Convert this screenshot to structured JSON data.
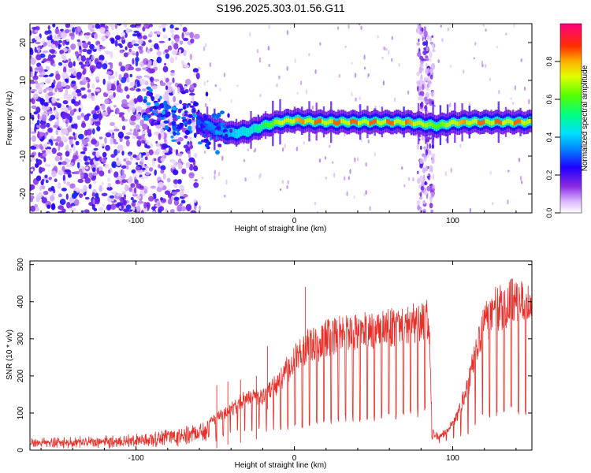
{
  "title": "S196.2025.303.01.56.G11",
  "colors": {
    "snr_line": "#e8302a",
    "axis": "#000000",
    "background": "#ffffff"
  },
  "chart_data": [
    {
      "type": "heatmap",
      "name": "spectrogram",
      "xlabel": "Height of straight line (km)",
      "ylabel": "Frequency (Hz)",
      "xlim": [
        -167,
        150
      ],
      "ylim": [
        -25,
        25
      ],
      "x_ticks": [
        -100,
        0,
        100
      ],
      "y_ticks": [
        -20,
        -10,
        0,
        10,
        20
      ],
      "colorbar": {
        "label": "Normalized spectral amplitude",
        "range": [
          0,
          1
        ],
        "ticks": [
          0.0,
          0.2,
          0.4,
          0.6,
          0.8
        ],
        "tick_labels": [
          "0.0",
          "0.2",
          "0.4",
          "0.6",
          "0.8"
        ],
        "colormap": "rainbow (white-purple-blue-cyan-green-yellow-orange-red-magenta)"
      },
      "description_points": {
        "noise_region_x": [
          -167,
          -60
        ],
        "noise_freq_range": [
          -25,
          25
        ],
        "interference_band_x": [
          78,
          88
        ],
        "signal_track": {
          "x": [
            -60,
            -50,
            -40,
            -30,
            -20,
            -10,
            0,
            10,
            20,
            30,
            40,
            50,
            60,
            70,
            80,
            90,
            100,
            110,
            120,
            130,
            140,
            150
          ],
          "freq": [
            -1.5,
            -3,
            -4,
            -3.5,
            -2,
            -1,
            -0.5,
            -0.8,
            -1,
            -1,
            -1,
            -1,
            -1,
            -1,
            -1.5,
            -2,
            -1.2,
            -1,
            -1,
            -1,
            -1,
            -1
          ],
          "amplitude": [
            0.3,
            0.35,
            0.4,
            0.45,
            0.55,
            0.7,
            0.8,
            0.85,
            0.85,
            0.85,
            0.85,
            0.85,
            0.85,
            0.85,
            0.7,
            0.6,
            0.75,
            0.85,
            0.85,
            0.85,
            0.85,
            0.8
          ]
        }
      }
    },
    {
      "type": "line",
      "name": "snr",
      "xlabel": "Height of straight line (km)",
      "ylabel": "SNR (10 * v/v)",
      "xlim": [
        -167,
        150
      ],
      "ylim": [
        0,
        510
      ],
      "x_ticks": [
        -100,
        0,
        100
      ],
      "y_ticks": [
        0,
        100,
        200,
        300,
        400,
        500
      ],
      "series": [
        {
          "name": "SNR",
          "x": [
            -167,
            -140,
            -110,
            -80,
            -60,
            -50,
            -40,
            -30,
            -20,
            -10,
            -5,
            0,
            10,
            20,
            30,
            40,
            50,
            60,
            70,
            80,
            85,
            87,
            90,
            95,
            100,
            105,
            110,
            115,
            120,
            125,
            130,
            135,
            140,
            145,
            150
          ],
          "top": [
            30,
            30,
            35,
            50,
            70,
            100,
            130,
            160,
            170,
            210,
            250,
            290,
            330,
            350,
            360,
            370,
            375,
            380,
            385,
            400,
            410,
            60,
            40,
            50,
            80,
            130,
            210,
            320,
            400,
            430,
            450,
            460,
            470,
            460,
            455
          ],
          "floor": [
            10,
            10,
            10,
            15,
            25,
            20,
            35,
            40,
            45,
            50,
            55,
            60,
            60,
            70,
            75,
            80,
            80,
            85,
            90,
            95,
            100,
            20,
            15,
            20,
            25,
            30,
            45,
            65,
            80,
            90,
            95,
            100,
            100,
            100,
            100
          ]
        }
      ],
      "spike_peaks": [
        {
          "x": -49,
          "y": 175
        },
        {
          "x": -42,
          "y": 185
        },
        {
          "x": -34,
          "y": 190
        },
        {
          "x": -24,
          "y": 200
        },
        {
          "x": -17,
          "y": 280
        },
        {
          "x": 7,
          "y": 440
        }
      ]
    }
  ]
}
